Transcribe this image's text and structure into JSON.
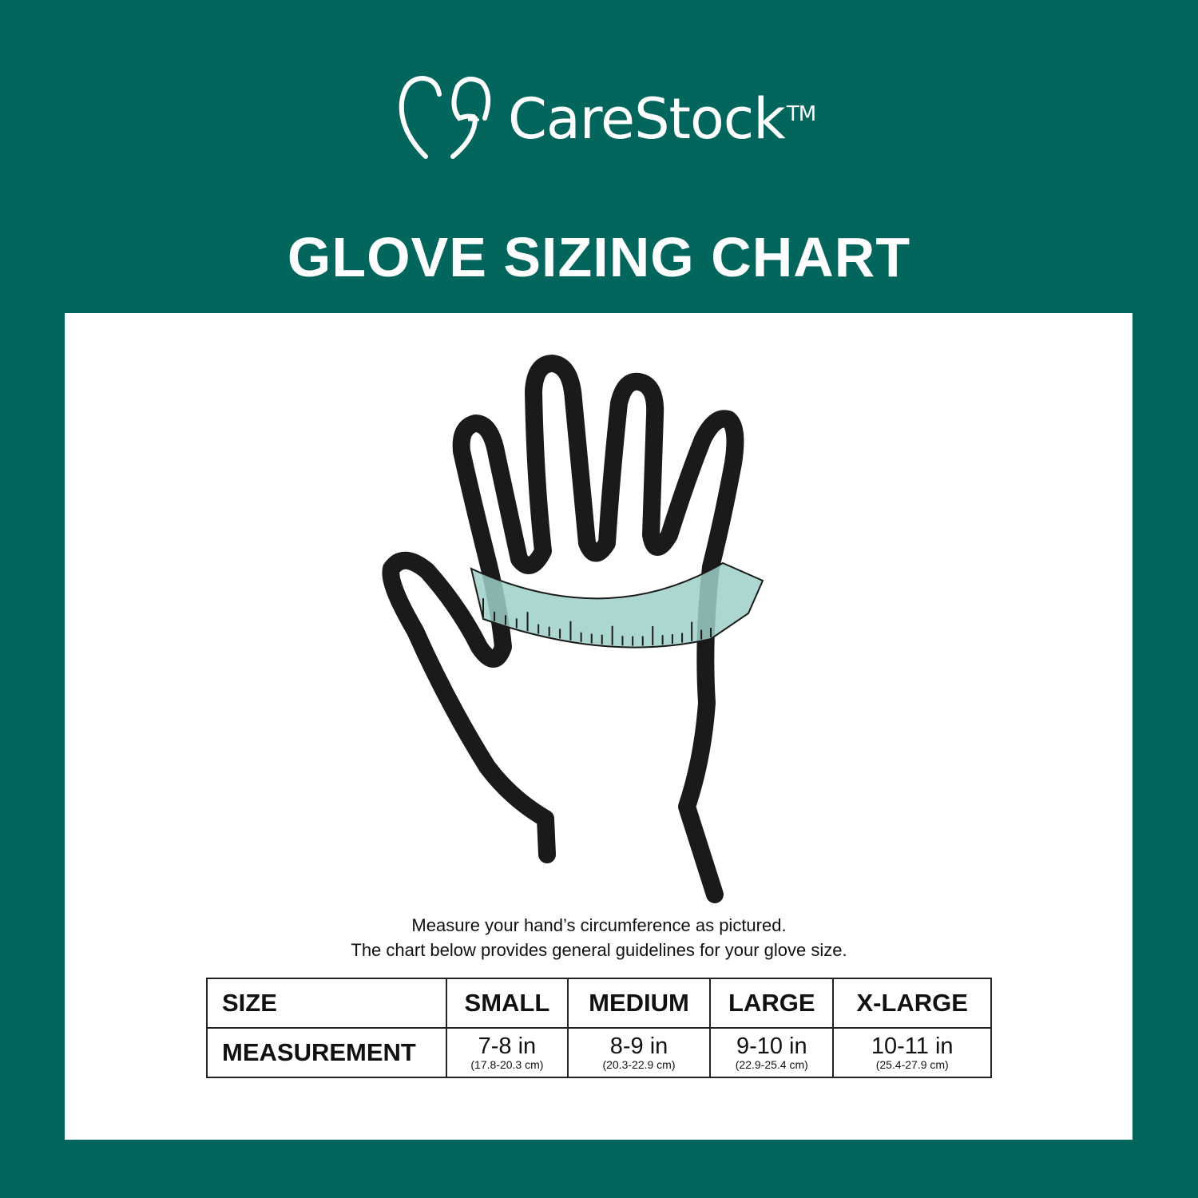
{
  "brand": {
    "name": "CareStock",
    "trademark": "TM"
  },
  "title": "GLOVE SIZING CHART",
  "caption": {
    "line1": "Measure your hand’s circumference as pictured.",
    "line2": "The chart below provides general guidelines for your glove size."
  },
  "table": {
    "row_headers": [
      "SIZE",
      "MEASUREMENT"
    ],
    "sizes": [
      {
        "size": "SMALL",
        "inches": "7-8 in",
        "cm": "(17.8-20.3 cm)"
      },
      {
        "size": "MEDIUM",
        "inches": "8-9 in",
        "cm": "(20.3-22.9 cm)"
      },
      {
        "size": "LARGE",
        "inches": "9-10 in",
        "cm": "(22.9-25.4 cm)"
      },
      {
        "size": "X-LARGE",
        "inches": "10-11 in",
        "cm": "(25.4-27.9 cm)"
      }
    ]
  },
  "colors": {
    "background": "#03665d",
    "tape": "#9dcfc8",
    "outline": "#1a1a1a"
  }
}
